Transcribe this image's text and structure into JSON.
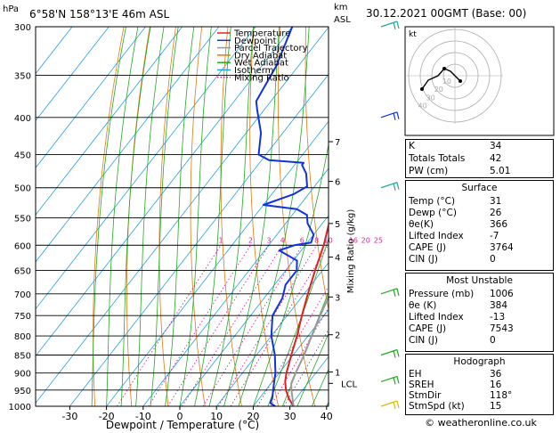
{
  "header": {
    "hpa_label": "hPa",
    "location": "6°58'N 158°13'E 46m ASL",
    "km_label": "km",
    "asl_label": "ASL",
    "datetime": "30.12.2021 00GMT (Base: 00)"
  },
  "legend": [
    {
      "label": "Temperature",
      "color": "#dd2222"
    },
    {
      "label": "Dewpoint",
      "color": "#1133dd"
    },
    {
      "label": "Parcel Trajectory",
      "color": "#999999"
    },
    {
      "label": "Dry Adiabat",
      "color": "#e07a10"
    },
    {
      "label": "Wet Adiabat",
      "color": "#22aa22"
    },
    {
      "label": "Isotherm",
      "color": "#22a0e0"
    },
    {
      "label": "Mixing Ratio",
      "color": "#dd2299"
    }
  ],
  "chart_data": {
    "type": "line",
    "title": "",
    "xlabel": "Dewpoint / Temperature (°C)",
    "ylabel": "hPa",
    "y2label": "Mixing Ratio (g/kg)",
    "xlim": [
      -35,
      40
    ],
    "ylim": [
      1000,
      300
    ],
    "y_scale": "log",
    "pressure_ticks": [
      300,
      350,
      400,
      450,
      500,
      550,
      600,
      650,
      700,
      750,
      800,
      850,
      900,
      950,
      1000
    ],
    "temperature_ticks": [
      -30,
      -20,
      -10,
      0,
      10,
      20,
      30,
      40
    ],
    "km_ticks": [
      {
        "label": "7",
        "p": 432
      },
      {
        "label": "6",
        "p": 490
      },
      {
        "label": "5",
        "p": 560
      },
      {
        "label": "4",
        "p": 623
      },
      {
        "label": "3",
        "p": 707
      },
      {
        "label": "2",
        "p": 797
      },
      {
        "label": "1",
        "p": 897
      }
    ],
    "lcl": {
      "label": "LCL",
      "p": 930
    },
    "mixing_ratio_labels": [
      "1",
      "2",
      "3",
      "4",
      "6",
      "8",
      "10",
      "16",
      "20",
      "25"
    ],
    "series": [
      {
        "name": "Temperature",
        "color": "#dd2222",
        "points": [
          [
            1000,
            31
          ],
          [
            975,
            28
          ],
          [
            950,
            25.5
          ],
          [
            925,
            23.5
          ],
          [
            900,
            22
          ],
          [
            850,
            19.5
          ],
          [
            800,
            17
          ],
          [
            750,
            14
          ],
          [
            700,
            11
          ],
          [
            650,
            8
          ],
          [
            600,
            5
          ],
          [
            550,
            1
          ],
          [
            500,
            -4
          ],
          [
            450,
            -10
          ],
          [
            400,
            -17
          ],
          [
            350,
            -26
          ],
          [
            325,
            -31
          ]
        ]
      },
      {
        "name": "Dewpoint",
        "color": "#1133dd",
        "points": [
          [
            1000,
            26
          ],
          [
            990,
            24
          ],
          [
            975,
            23.5
          ],
          [
            950,
            22
          ],
          [
            925,
            20.5
          ],
          [
            900,
            19
          ],
          [
            850,
            15
          ],
          [
            800,
            10
          ],
          [
            750,
            6
          ],
          [
            710,
            5
          ],
          [
            680,
            3
          ],
          [
            650,
            3
          ],
          [
            630,
            1
          ],
          [
            610,
            -6
          ],
          [
            600,
            -3
          ],
          [
            595,
            1
          ],
          [
            580,
            0
          ],
          [
            560,
            -4
          ],
          [
            545,
            -6
          ],
          [
            535,
            -10
          ],
          [
            528,
            -20
          ],
          [
            510,
            -14
          ],
          [
            498,
            -12
          ],
          [
            478,
            -15
          ],
          [
            465,
            -18
          ],
          [
            462,
            -18
          ],
          [
            458,
            -28
          ],
          [
            450,
            -32
          ],
          [
            420,
            -36
          ],
          [
            390,
            -42
          ],
          [
            380,
            -44
          ],
          [
            340,
            -46
          ],
          [
            300,
            -50
          ]
        ]
      },
      {
        "name": "Parcel Trajectory",
        "color": "#999999",
        "points": [
          [
            1000,
            31
          ],
          [
            950,
            27
          ],
          [
            930,
            25.5
          ],
          [
            900,
            24.5
          ],
          [
            850,
            23
          ],
          [
            800,
            21
          ],
          [
            750,
            19
          ],
          [
            700,
            17
          ],
          [
            650,
            14.5
          ],
          [
            600,
            12
          ],
          [
            550,
            8.5
          ],
          [
            500,
            4.5
          ],
          [
            450,
            0
          ],
          [
            400,
            -6
          ],
          [
            350,
            -13
          ],
          [
            320,
            -18
          ]
        ]
      }
    ]
  },
  "hodograph": {
    "title": "kt",
    "ring_labels": [
      "10",
      "20",
      "30",
      "40"
    ]
  },
  "indices": [
    {
      "label": "K",
      "value": "34"
    },
    {
      "label": "Totals Totals",
      "value": "42"
    },
    {
      "label": "PW (cm)",
      "value": "5.01"
    }
  ],
  "surface": {
    "title": "Surface",
    "rows": [
      {
        "label": "Temp (°C)",
        "value": "31"
      },
      {
        "label": "Dewp (°C)",
        "value": "26"
      },
      {
        "label": "θe(K)",
        "value": "366"
      },
      {
        "label": "Lifted Index",
        "value": "-7"
      },
      {
        "label": "CAPE (J)",
        "value": "3764"
      },
      {
        "label": "CIN (J)",
        "value": "0"
      }
    ]
  },
  "most_unstable": {
    "title": "Most Unstable",
    "rows": [
      {
        "label": "Pressure (mb)",
        "value": "1006"
      },
      {
        "label": "θe (K)",
        "value": "384"
      },
      {
        "label": "Lifted Index",
        "value": "-13"
      },
      {
        "label": "CAPE (J)",
        "value": "7543"
      },
      {
        "label": "CIN (J)",
        "value": "0"
      }
    ]
  },
  "hodograph_table": {
    "title": "Hodograph",
    "rows": [
      {
        "label": "EH",
        "value": "36"
      },
      {
        "label": "SREH",
        "value": "16"
      },
      {
        "label": "StmDir",
        "value": "118°"
      },
      {
        "label": "StmSpd (kt)",
        "value": "15"
      }
    ]
  },
  "copyright": "© weatheronline.co.uk"
}
